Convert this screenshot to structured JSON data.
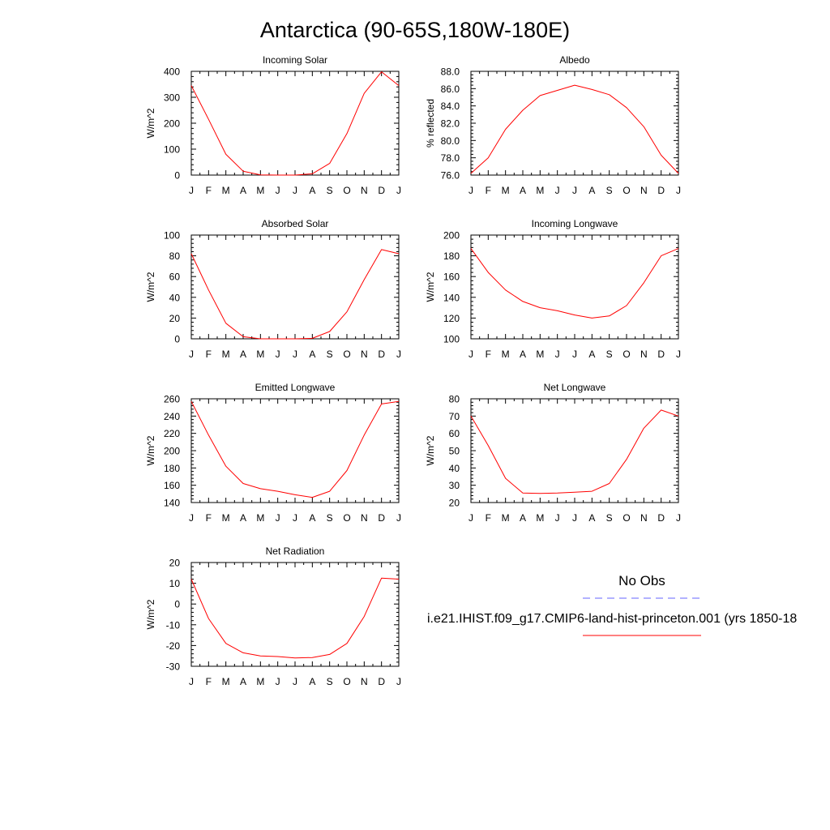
{
  "figure": {
    "title": "Antarctica (90-65S,180W-180E)"
  },
  "legend": {
    "obs_label": "No Obs",
    "model_label": "i.e21.IHIST.f09_g17.CMIP6-land-hist-princeton.001 (yrs 1850-18",
    "obs_color": "#6666ff",
    "model_color": "#ff0000"
  },
  "chart_data": [
    {
      "type": "line",
      "title": "Incoming Solar",
      "xlabel": "",
      "ylabel": "W/m^2",
      "x": [
        "J",
        "F",
        "M",
        "A",
        "M",
        "J",
        "J",
        "A",
        "S",
        "O",
        "N",
        "D",
        "J"
      ],
      "ylim": [
        0,
        400
      ],
      "yticks": [
        0,
        100,
        200,
        300,
        400
      ],
      "yticklabels": [
        "0",
        "100",
        "200",
        "300",
        "400"
      ],
      "grid": false,
      "series": [
        {
          "color": "#ff0000",
          "values": [
            345,
            215,
            80,
            15,
            1,
            0,
            0,
            5,
            45,
            160,
            315,
            398,
            345
          ]
        }
      ]
    },
    {
      "type": "line",
      "title": "Albedo",
      "xlabel": "",
      "ylabel": "% reflected",
      "x": [
        "J",
        "F",
        "M",
        "A",
        "M",
        "J",
        "J",
        "A",
        "S",
        "O",
        "N",
        "D",
        "J"
      ],
      "ylim": [
        76,
        88
      ],
      "yticks": [
        76,
        78,
        80,
        82,
        84,
        86,
        88
      ],
      "yticklabels": [
        "76.0",
        "78.0",
        "80.0",
        "82.0",
        "84.0",
        "86.0",
        "88.0"
      ],
      "grid": false,
      "series": [
        {
          "color": "#ff0000",
          "values": [
            76.2,
            78.0,
            81.3,
            83.5,
            85.2,
            85.8,
            86.4,
            85.9,
            85.3,
            83.8,
            81.6,
            78.3,
            76.2
          ]
        }
      ]
    },
    {
      "type": "line",
      "title": "Absorbed Solar",
      "xlabel": "",
      "ylabel": "W/m^2",
      "x": [
        "J",
        "F",
        "M",
        "A",
        "M",
        "J",
        "J",
        "A",
        "S",
        "O",
        "N",
        "D",
        "J"
      ],
      "ylim": [
        0,
        100
      ],
      "yticks": [
        0,
        20,
        40,
        60,
        80,
        100
      ],
      "yticklabels": [
        "0",
        "20",
        "40",
        "60",
        "80",
        "100"
      ],
      "grid": false,
      "series": [
        {
          "color": "#ff0000",
          "values": [
            82,
            47,
            15,
            2,
            0,
            0,
            0,
            0.5,
            7,
            26,
            57,
            86,
            82
          ]
        }
      ]
    },
    {
      "type": "line",
      "title": "Incoming Longwave",
      "xlabel": "",
      "ylabel": "W/m^2",
      "x": [
        "J",
        "F",
        "M",
        "A",
        "M",
        "J",
        "J",
        "A",
        "S",
        "O",
        "N",
        "D",
        "J"
      ],
      "ylim": [
        100,
        200
      ],
      "yticks": [
        100,
        120,
        140,
        160,
        180,
        200
      ],
      "yticklabels": [
        "100",
        "120",
        "140",
        "160",
        "180",
        "200"
      ],
      "grid": false,
      "series": [
        {
          "color": "#ff0000",
          "values": [
            187,
            164,
            147,
            136,
            130,
            127,
            123,
            120,
            122,
            132,
            154,
            180,
            187
          ]
        }
      ]
    },
    {
      "type": "line",
      "title": "Emitted Longwave",
      "xlabel": "",
      "ylabel": "W/m^2",
      "x": [
        "J",
        "F",
        "M",
        "A",
        "M",
        "J",
        "J",
        "A",
        "S",
        "O",
        "N",
        "D",
        "J"
      ],
      "ylim": [
        140,
        260
      ],
      "yticks": [
        140,
        160,
        180,
        200,
        220,
        240,
        260
      ],
      "yticklabels": [
        "140",
        "160",
        "180",
        "200",
        "220",
        "240",
        "260"
      ],
      "grid": false,
      "series": [
        {
          "color": "#ff0000",
          "values": [
            257,
            218,
            182,
            162,
            156,
            153,
            149,
            146,
            153,
            177,
            218,
            254,
            257
          ]
        }
      ]
    },
    {
      "type": "line",
      "title": "Net Longwave",
      "xlabel": "",
      "ylabel": "W/m^2",
      "x": [
        "J",
        "F",
        "M",
        "A",
        "M",
        "J",
        "J",
        "A",
        "S",
        "O",
        "N",
        "D",
        "J"
      ],
      "ylim": [
        20,
        80
      ],
      "yticks": [
        20,
        30,
        40,
        50,
        60,
        70,
        80
      ],
      "yticklabels": [
        "20",
        "30",
        "40",
        "50",
        "60",
        "70",
        "80"
      ],
      "grid": false,
      "series": [
        {
          "color": "#ff0000",
          "values": [
            70,
            53,
            34,
            25.5,
            25.3,
            25.5,
            26,
            26.5,
            31,
            45,
            63,
            73.5,
            70
          ]
        }
      ]
    },
    {
      "type": "line",
      "title": "Net Radiation",
      "xlabel": "",
      "ylabel": "W/m^2",
      "x": [
        "J",
        "F",
        "M",
        "A",
        "M",
        "J",
        "J",
        "A",
        "S",
        "O",
        "N",
        "D",
        "J"
      ],
      "ylim": [
        -30,
        20
      ],
      "yticks": [
        -30,
        -20,
        -10,
        0,
        10,
        20
      ],
      "yticklabels": [
        "-30",
        "-20",
        "-10",
        "0",
        "10",
        "20"
      ],
      "grid": false,
      "series": [
        {
          "color": "#ff0000",
          "values": [
            12,
            -7,
            -19,
            -23.5,
            -25,
            -25.3,
            -26,
            -25.8,
            -24.3,
            -19,
            -6,
            12.5,
            12
          ]
        }
      ]
    }
  ]
}
